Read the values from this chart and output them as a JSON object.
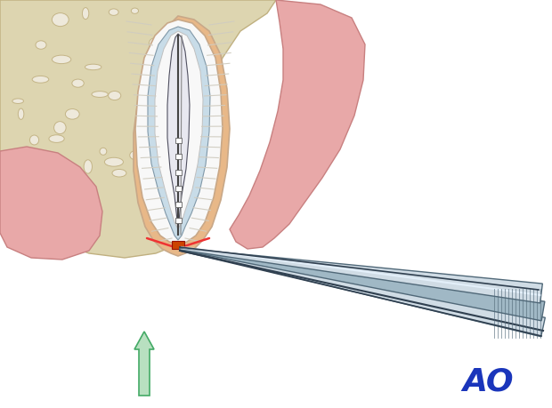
{
  "bg_color": "#ffffff",
  "bone_color": "#ddd5b0",
  "bone_edge_color": "#c0b080",
  "bone_pore_fill": "#f0ece0",
  "gum_color": "#e8a8a8",
  "gum_edge_color": "#c88080",
  "tooth_outer_color": "#f5ede5",
  "tooth_edge_color": "#c8a888",
  "pulp_white": "#f8f8f8",
  "pdl_color": "#e8b888",
  "canal_blue": "#c8dce8",
  "canal_edge": "#8098a8",
  "cone_dark": "#444444",
  "cone_gray": "#888888",
  "white_fill": "#ffffff",
  "red_line_color": "#ee3333",
  "orange_color": "#cc4400",
  "forceps_light": "#d0dce5",
  "forceps_mid": "#a0b8c5",
  "forceps_dark": "#506878",
  "forceps_shadow": "#304050",
  "arrow_fill": "#b8e0c0",
  "arrow_edge": "#44aa66",
  "ao_color": "#1a35bb",
  "ao_fontsize": 26,
  "fiber_color": "#d0ccc0"
}
